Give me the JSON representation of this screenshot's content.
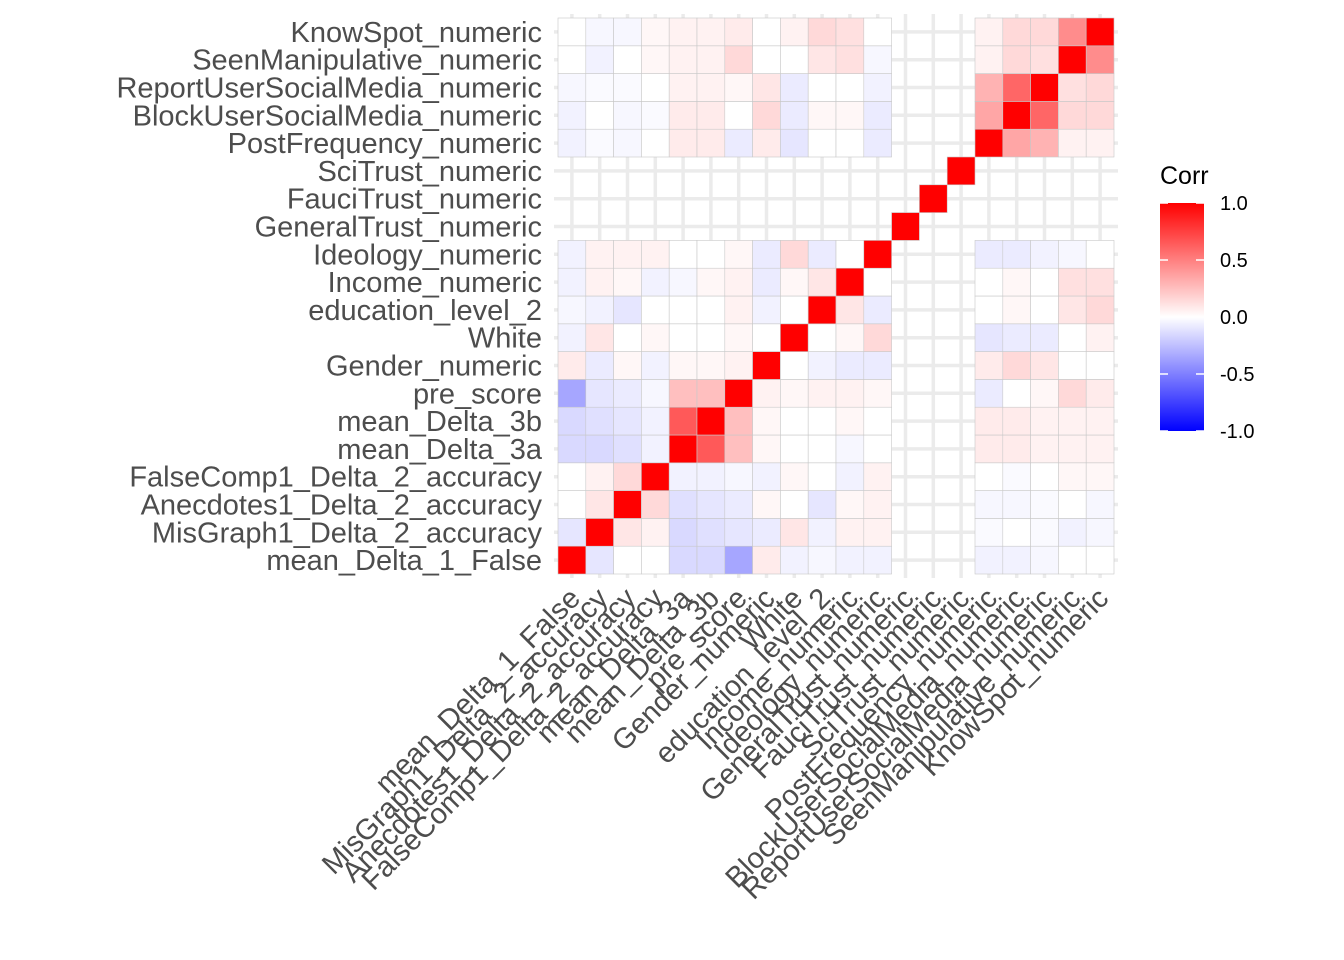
{
  "chart_data": {
    "type": "heatmap",
    "variables": [
      "mean_Delta_1_False",
      "MisGraph1_Delta_2_accuracy",
      "Anecdotes1_Delta_2_accuracy",
      "FalseComp1_Delta_2_accuracy",
      "mean_Delta_3a",
      "mean_Delta_3b",
      "pre_score",
      "Gender_numeric",
      "White",
      "education_level_2",
      "Income_numeric",
      "Ideology_numeric",
      "GeneralTrust_numeric",
      "FauciTrust_numeric",
      "SciTrust_numeric",
      "PostFrequency_numeric",
      "BlockUserSocialMedia_numeric",
      "ReportUserSocialMedia_numeric",
      "SeenManipulative_numeric",
      "KnowSpot_numeric"
    ],
    "missing_variables": [
      "GeneralTrust_numeric",
      "FauciTrust_numeric",
      "SciTrust_numeric"
    ],
    "matrix": [
      [
        1,
        -0.1,
        0,
        0,
        -0.15,
        -0.15,
        -0.35,
        0.08,
        -0.05,
        -0.03,
        -0.05,
        -0.05,
        null,
        null,
        null,
        -0.05,
        -0.05,
        -0.03,
        0,
        0
      ],
      [
        -0.1,
        1,
        0.1,
        0.05,
        -0.15,
        -0.12,
        -0.1,
        -0.08,
        0.1,
        -0.05,
        0.05,
        0.05,
        null,
        null,
        null,
        -0.02,
        0,
        -0.02,
        -0.05,
        -0.03
      ],
      [
        0,
        0.1,
        1,
        0.15,
        -0.12,
        -0.1,
        -0.08,
        0.03,
        0,
        -0.1,
        0.03,
        0.05,
        null,
        null,
        null,
        -0.03,
        -0.03,
        -0.02,
        0,
        -0.03
      ],
      [
        0,
        0.05,
        0.15,
        1,
        -0.05,
        -0.05,
        -0.03,
        -0.05,
        0.03,
        0,
        -0.05,
        0.05,
        null,
        null,
        null,
        0,
        -0.02,
        0,
        0.03,
        0.03
      ],
      [
        -0.15,
        -0.15,
        -0.12,
        -0.05,
        1,
        0.65,
        0.25,
        0.03,
        0,
        0,
        -0.03,
        0,
        null,
        null,
        null,
        0.08,
        0.08,
        0.05,
        0.05,
        0.05
      ],
      [
        -0.15,
        -0.12,
        -0.1,
        -0.05,
        0.65,
        1,
        0.25,
        0.03,
        0,
        0,
        0.03,
        0,
        null,
        null,
        null,
        0.08,
        0.08,
        0.05,
        0.05,
        0.05
      ],
      [
        -0.35,
        -0.1,
        -0.08,
        -0.03,
        0.25,
        0.25,
        1,
        0.05,
        0.03,
        0.05,
        0.05,
        0.03,
        null,
        null,
        null,
        -0.08,
        0,
        0.03,
        0.15,
        0.08
      ],
      [
        0.08,
        -0.08,
        0.03,
        -0.05,
        0.03,
        0.03,
        0.05,
        1,
        0,
        -0.05,
        -0.08,
        -0.08,
        null,
        null,
        null,
        0.08,
        0.15,
        0.1,
        0,
        0
      ],
      [
        -0.05,
        0.1,
        0,
        0.03,
        0,
        0,
        0.03,
        0,
        1,
        0,
        0.03,
        0.15,
        null,
        null,
        null,
        -0.1,
        -0.08,
        -0.08,
        0,
        0.05
      ],
      [
        -0.03,
        -0.05,
        -0.1,
        0,
        0,
        0,
        0.05,
        -0.05,
        0,
        1,
        0.1,
        -0.08,
        null,
        null,
        null,
        0,
        0.03,
        0,
        0.1,
        0.15
      ],
      [
        -0.05,
        0.05,
        0.03,
        -0.05,
        -0.03,
        0.03,
        0.05,
        -0.08,
        0.03,
        0.1,
        1,
        0,
        null,
        null,
        null,
        0,
        0.03,
        0,
        0.12,
        0.12
      ],
      [
        -0.05,
        0.05,
        0.05,
        0.05,
        0,
        0,
        0.03,
        -0.08,
        0.15,
        -0.08,
        0,
        1,
        null,
        null,
        null,
        -0.08,
        -0.08,
        -0.05,
        -0.03,
        0
      ],
      [
        null,
        null,
        null,
        null,
        null,
        null,
        null,
        null,
        null,
        null,
        null,
        null,
        1,
        null,
        null,
        null,
        null,
        null,
        null,
        null
      ],
      [
        null,
        null,
        null,
        null,
        null,
        null,
        null,
        null,
        null,
        null,
        null,
        null,
        null,
        1,
        null,
        null,
        null,
        null,
        null,
        null
      ],
      [
        null,
        null,
        null,
        null,
        null,
        null,
        null,
        null,
        null,
        null,
        null,
        null,
        null,
        null,
        1,
        null,
        null,
        null,
        null,
        null
      ],
      [
        -0.05,
        -0.02,
        -0.03,
        0,
        0.08,
        0.08,
        -0.08,
        0.08,
        -0.1,
        0,
        0,
        -0.08,
        null,
        null,
        null,
        1,
        0.35,
        0.3,
        0.05,
        0.05
      ],
      [
        -0.05,
        0,
        -0.03,
        -0.02,
        0.08,
        0.08,
        0,
        0.15,
        -0.08,
        0.03,
        0.03,
        -0.08,
        null,
        null,
        null,
        0.35,
        1,
        0.6,
        0.15,
        0.15
      ],
      [
        -0.03,
        -0.02,
        -0.02,
        0,
        0.05,
        0.05,
        0.03,
        0.1,
        -0.08,
        0,
        0,
        -0.05,
        null,
        null,
        null,
        0.3,
        0.6,
        1,
        0.12,
        0.15
      ],
      [
        0,
        -0.05,
        0,
        0.03,
        0.05,
        0.05,
        0.15,
        0,
        0,
        0.1,
        0.12,
        -0.03,
        null,
        null,
        null,
        0.05,
        0.15,
        0.12,
        1,
        0.45
      ],
      [
        0,
        -0.03,
        -0.03,
        0.03,
        0.05,
        0.05,
        0.08,
        0,
        0.05,
        0.15,
        0.12,
        0,
        null,
        null,
        null,
        0.05,
        0.15,
        0.15,
        0.45,
        1
      ]
    ],
    "legend": {
      "title": "Corr",
      "ticks": [
        "1.0",
        "0.5",
        "0.0",
        "-0.5",
        "-1.0"
      ],
      "tick_values": [
        1.0,
        0.5,
        0.0,
        -0.5,
        -1.0
      ],
      "range": [
        -1,
        1
      ],
      "colors": {
        "low": "#0000ff",
        "mid": "#ffffff",
        "high": "#ff0000"
      },
      "placement": "right"
    },
    "grid": true
  }
}
